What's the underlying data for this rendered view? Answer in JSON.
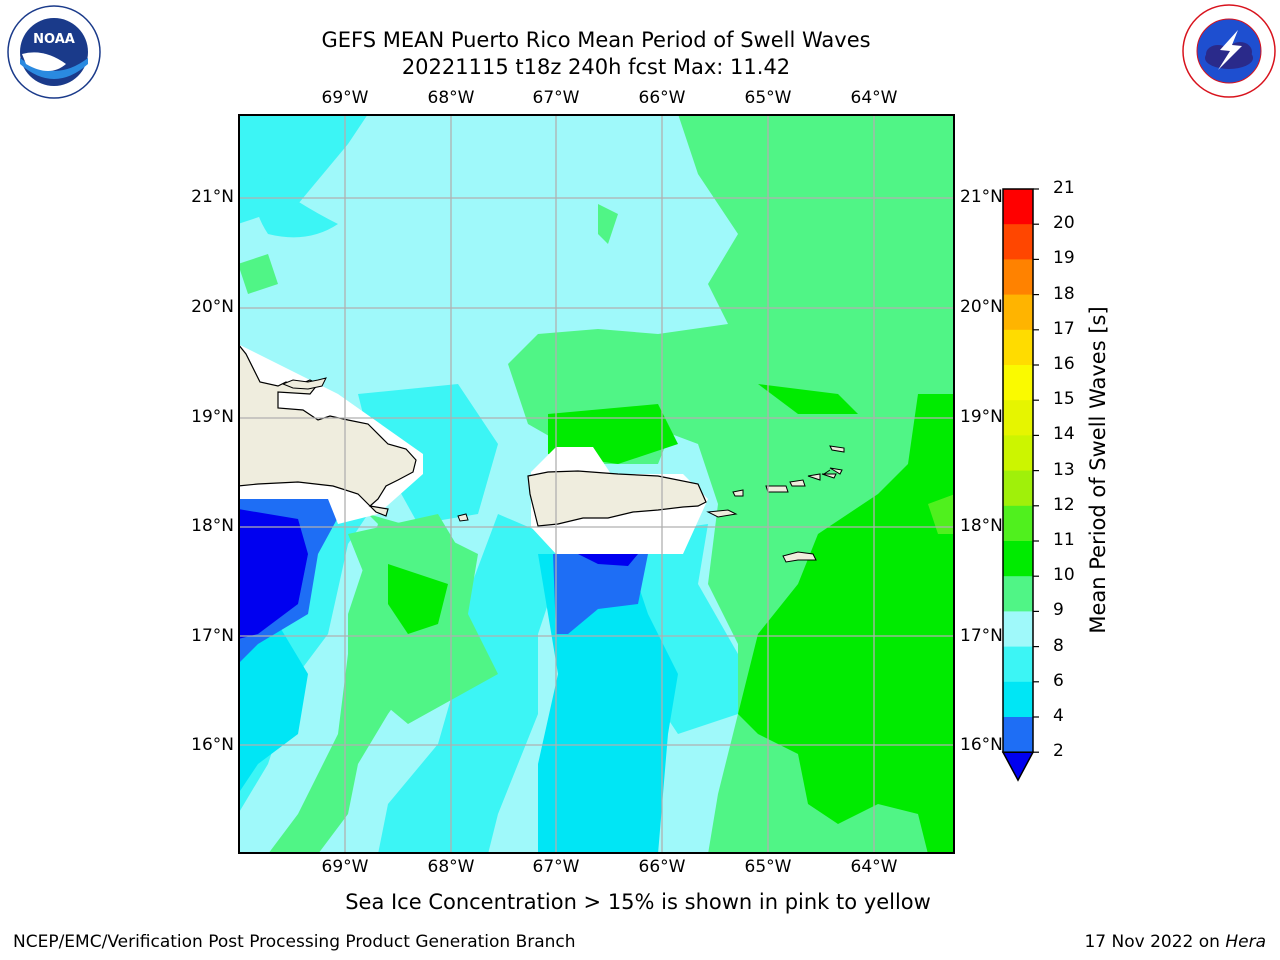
{
  "header": {
    "title_line1": "GEFS MEAN Puerto Rico Mean Period of Swell Waves",
    "title_line2": "20221115 t18z 240h fcst   Max: 11.42"
  },
  "logos": {
    "left": {
      "name": "NOAA",
      "ring_text": "NATIONAL OCEANIC AND ATMOSPHERIC ADMINISTRATION",
      "bottom_text": "U.S. DEPARTMENT OF COMMERCE"
    },
    "right": {
      "ring_text": "NATIONAL WEATHER SERVICE"
    }
  },
  "map": {
    "lon_labels": [
      "69°W",
      "68°W",
      "67°W",
      "66°W",
      "65°W",
      "64°W"
    ],
    "lat_labels": [
      "21°N",
      "20°N",
      "19°N",
      "18°N",
      "17°N",
      "16°N"
    ],
    "frame_color": "#000000",
    "grid_color": "#b0b0b0",
    "land_color": "#efedde"
  },
  "colorbar": {
    "label": "Mean Period of Swell Waves [s]",
    "ticks": [
      "2",
      "4",
      "6",
      "8",
      "9",
      "10",
      "11",
      "12",
      "13",
      "14",
      "15",
      "16",
      "17",
      "18",
      "19",
      "20",
      "21"
    ],
    "colors": [
      "#0000f0",
      "#1e6ef5",
      "#00e6f5",
      "#3cf5f5",
      "#9ff9fa",
      "#50f586",
      "#00eb00",
      "#50f01e",
      "#a0f00a",
      "#ccf500",
      "#e6f500",
      "#fafa00",
      "#ffdc00",
      "#ffb400",
      "#ff8200",
      "#ff4600",
      "#ff0000"
    ],
    "extend": "min"
  },
  "notes": {
    "sea_ice": "Sea Ice Concentration > 15% is shown in pink to yellow"
  },
  "footer": {
    "left": "NCEP/EMC/Verification Post Processing Product Generation Branch",
    "date": "17 Nov 2022 on ",
    "host": "Hera"
  }
}
